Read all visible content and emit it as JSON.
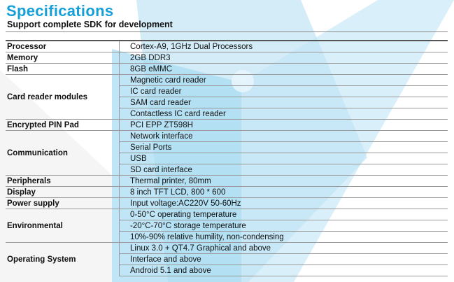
{
  "header": {
    "title": "Specifications",
    "subtitle": "Support complete SDK for development"
  },
  "colors": {
    "accent": "#17a0d8",
    "shape_light": "#cfe9f6",
    "shape_mid": "#8fd0ef",
    "text": "#111111"
  },
  "specs": [
    {
      "category": "Processor",
      "values": [
        "Cortex-A9, 1GHz Dual Processors"
      ]
    },
    {
      "category": "Memory",
      "values": [
        "2GB DDR3"
      ]
    },
    {
      "category": "Flash",
      "values": [
        "8GB eMMC"
      ]
    },
    {
      "category": "Card reader modules",
      "values": [
        "Magnetic card reader",
        "IC card reader",
        "SAM card reader",
        "Contactless IC card reader"
      ]
    },
    {
      "category": "Encrypted PIN Pad",
      "values": [
        "PCI EPP ZT598H"
      ]
    },
    {
      "category": "Communication",
      "values": [
        "Network interface",
        "Serial Ports",
        "USB",
        "SD card interface"
      ]
    },
    {
      "category": "Peripherals",
      "values": [
        "Thermal printer, 80mm"
      ]
    },
    {
      "category": "Display",
      "values": [
        "8 inch TFT LCD, 800 * 600"
      ]
    },
    {
      "category": "Power supply",
      "values": [
        "Input voltage:AC220V 50-60Hz"
      ]
    },
    {
      "category": "Environmental",
      "values": [
        "0-50°C operating temperature",
        "-20°C-70°C storage temperature",
        "10%-90% relative humility, non-condensing"
      ]
    },
    {
      "category": "Operating System",
      "values": [
        "Linux 3.0 + QT4.7 Graphical and above",
        "Interface and above",
        "Android 5.1 and above"
      ]
    }
  ]
}
